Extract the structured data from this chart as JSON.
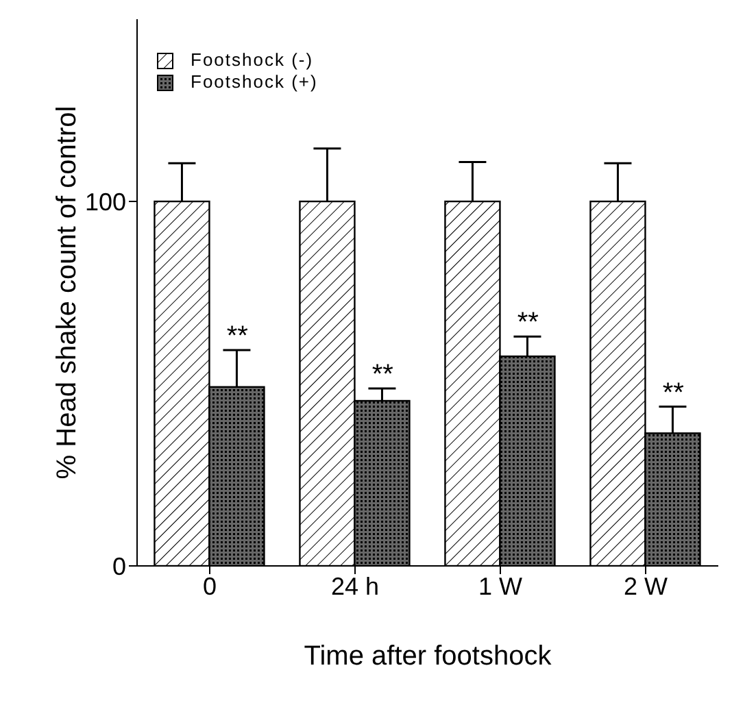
{
  "chart_data": {
    "type": "bar",
    "xlabel": "Time after footshock",
    "ylabel": "% Head shake count of control",
    "categories": [
      "0",
      "24 h",
      "1 W",
      "2 W"
    ],
    "series": [
      {
        "name": "Footshock (-)",
        "color": "#ffffff",
        "values": [
          100,
          100,
          100,
          100
        ],
        "errors": [
          [
            100,
            110.5
          ],
          [
            100,
            114.5
          ],
          [
            100,
            110.8
          ],
          [
            100,
            110.5
          ]
        ]
      },
      {
        "name": "Footshock (+)",
        "color": "#666666",
        "values": [
          49.1,
          45.3,
          57.5,
          36.4
        ],
        "errors": [
          [
            49.1,
            59.2
          ],
          [
            45.3,
            48.7
          ],
          [
            57.5,
            62.9
          ],
          [
            36.4,
            43.7
          ]
        ]
      }
    ],
    "ylim": [
      0,
      150
    ],
    "yticks": [
      0,
      100
    ],
    "grid": false,
    "legend": "top left",
    "annotations": [
      {
        "text": "**",
        "x": "0",
        "y": 59.2
      },
      {
        "text": "**",
        "x": "24 h",
        "y": 48.7
      },
      {
        "text": "**",
        "x": "1 W",
        "y": 62.9
      },
      {
        "text": "**",
        "x": "2 W",
        "y": 43.7
      }
    ]
  }
}
